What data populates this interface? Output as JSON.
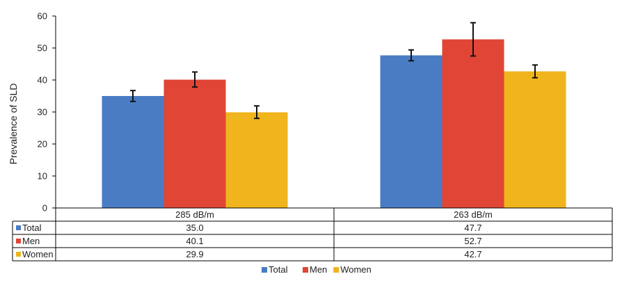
{
  "chart_data": {
    "type": "bar",
    "ylabel": "Prevalence of SLD",
    "ylim": [
      0,
      60
    ],
    "yticks": [
      0,
      10,
      20,
      30,
      40,
      50,
      60
    ],
    "categories": [
      "285 dB/m",
      "263 dB/m"
    ],
    "series": [
      {
        "name": "Total",
        "color": "#4a7cc4",
        "values": [
          35.0,
          47.7
        ],
        "value_labels": [
          "35.0",
          "47.7"
        ],
        "error_low": [
          33.3,
          46.0
        ],
        "error_high": [
          36.7,
          49.4
        ]
      },
      {
        "name": "Men",
        "color": "#e04535",
        "values": [
          40.1,
          52.7
        ],
        "value_labels": [
          "40.1",
          "52.7"
        ],
        "error_low": [
          37.8,
          47.5
        ],
        "error_high": [
          42.5,
          57.9
        ]
      },
      {
        "name": "Women",
        "color": "#f0b41c",
        "values": [
          29.9,
          42.7
        ],
        "value_labels": [
          "29.9",
          "42.7"
        ],
        "error_low": [
          28.0,
          40.7
        ],
        "error_high": [
          31.9,
          44.7
        ]
      }
    ],
    "data_table": true,
    "legend_position": "bottom",
    "grid": false
  }
}
